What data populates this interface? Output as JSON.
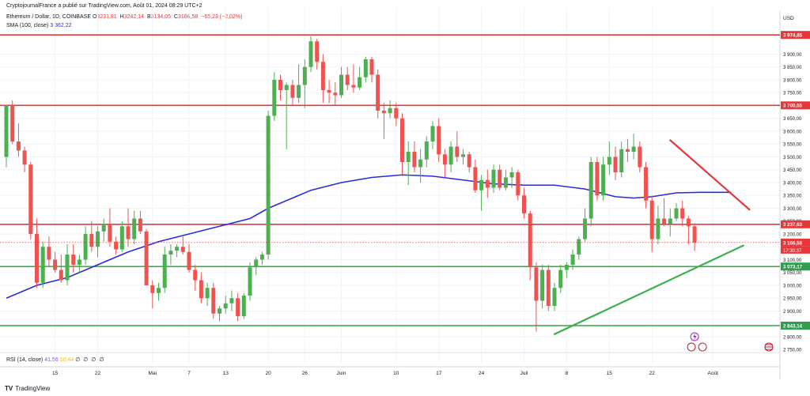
{
  "header": {
    "line1": "CryptojournalFrance a publié sur TradingView.com, Août 01, 2024 08:29 UTC+2",
    "line2": "Ethereum / Dollar, 1D, COINBASE",
    "ohlc": [
      {
        "label": "O",
        "value": "3231,81"
      },
      {
        "label": "H",
        "value": "3242,14"
      },
      {
        "label": "B",
        "value": "3134,05"
      },
      {
        "label": "C",
        "value": "3166,58"
      },
      {
        "label": "",
        "value": "−65,23 (−2,02%)"
      }
    ],
    "sma_label": "SMA (100, close)",
    "sma_value": "3 362,22",
    "rsi_label": "RSI (14, close)",
    "rsi_value1": "41,56",
    "rsi_value2": "50,44",
    "rsi_dots": "∅ ∅ ∅ ∅"
  },
  "axis": {
    "currency": "USD",
    "price_ticks": [
      "3 900,00",
      "3 850,00",
      "3 800,00",
      "3 750,00",
      "3 650,00",
      "3 600,00",
      "3 550,00",
      "3 500,00",
      "3 450,00",
      "3 400,00",
      "3 350,00",
      "3 300,00",
      "3 250,00",
      "3 200,00",
      "3 150,00",
      "3 100,00",
      "3 050,00",
      "3 000,00",
      "2 950,00",
      "2 900,00",
      "2 800,00",
      "2 750,00"
    ],
    "date_labels": [
      {
        "day": 8,
        "text": "15"
      },
      {
        "day": 15,
        "text": "22"
      },
      {
        "day": 24,
        "text": "Mai"
      },
      {
        "day": 30,
        "text": "7"
      },
      {
        "day": 36,
        "text": "13"
      },
      {
        "day": 43,
        "text": "20"
      },
      {
        "day": 49,
        "text": "26"
      },
      {
        "day": 55,
        "text": "Juin"
      },
      {
        "day": 64,
        "text": "10"
      },
      {
        "day": 71,
        "text": "17"
      },
      {
        "day": 78,
        "text": "24"
      },
      {
        "day": 85,
        "text": "Juil"
      },
      {
        "day": 92,
        "text": "8"
      },
      {
        "day": 99,
        "text": "15"
      },
      {
        "day": 106,
        "text": "22"
      },
      {
        "day": 116,
        "text": "Août"
      }
    ],
    "level_badges": [
      {
        "price": 3974.85,
        "text": "3 974,85",
        "color": "#e5383b"
      },
      {
        "price": 3700.55,
        "text": "3 700,55",
        "color": "#e5383b"
      },
      {
        "price": 3237.63,
        "text": "3 237,63",
        "color": "#e5383b"
      },
      {
        "price": 3166.58,
        "text": "3 166,58",
        "color": "#e5383b"
      },
      {
        "price": 3073.17,
        "text": "3 073,17",
        "color": "#2e9e4f"
      },
      {
        "price": 2843.14,
        "text": "2 843,14",
        "color": "#2e9e4f"
      }
    ],
    "countdown": "17:30:37"
  },
  "brand": {
    "logo": "TV",
    "name": "TradingView"
  },
  "colors": {
    "up": "#26a69a",
    "up_strong": "#4caf50",
    "down": "#ef5350",
    "resistance": "#e5383b",
    "support": "#3daf4b",
    "sma": "#2b2bd9",
    "grid": "#f0f3fa"
  },
  "chart_data": {
    "type": "candlestick",
    "x_unit": "trading day index (0 = chart start, ~2024-04-07)",
    "ylim": [
      2720,
      4000
    ],
    "horizontal_levels": [
      {
        "price": 3974.85,
        "kind": "resistance"
      },
      {
        "price": 3700.55,
        "kind": "resistance"
      },
      {
        "price": 3237.63,
        "kind": "resistance"
      },
      {
        "price": 3073.17,
        "kind": "support"
      },
      {
        "price": 2843.14,
        "kind": "support"
      }
    ],
    "trendlines": [
      {
        "kind": "resistance",
        "from": [
          109,
          3565
        ],
        "to": [
          122,
          3295
        ]
      },
      {
        "kind": "support",
        "from": [
          90,
          2810
        ],
        "to": [
          121,
          3155
        ]
      }
    ],
    "sma100": [
      [
        0,
        2950
      ],
      [
        5,
        3000
      ],
      [
        10,
        3030
      ],
      [
        15,
        3080
      ],
      [
        20,
        3130
      ],
      [
        25,
        3170
      ],
      [
        30,
        3200
      ],
      [
        35,
        3230
      ],
      [
        40,
        3260
      ],
      [
        43,
        3300
      ],
      [
        47,
        3340
      ],
      [
        50,
        3370
      ],
      [
        55,
        3400
      ],
      [
        60,
        3420
      ],
      [
        65,
        3430
      ],
      [
        70,
        3425
      ],
      [
        75,
        3410
      ],
      [
        80,
        3395
      ],
      [
        85,
        3390
      ],
      [
        90,
        3390
      ],
      [
        95,
        3375
      ],
      [
        100,
        3345
      ],
      [
        103,
        3340
      ],
      [
        106,
        3345
      ],
      [
        110,
        3360
      ],
      [
        114,
        3362
      ],
      [
        119,
        3362
      ]
    ],
    "candles": [
      [
        3500,
        3700,
        3460,
        3700
      ],
      [
        3700,
        3720,
        3550,
        3560
      ],
      [
        3560,
        3630,
        3500,
        3525
      ],
      [
        3525,
        3540,
        3440,
        3470
      ],
      [
        3470,
        3480,
        3180,
        3200
      ],
      [
        3200,
        3260,
        2990,
        3010
      ],
      [
        3010,
        3170,
        2990,
        3150
      ],
      [
        3150,
        3190,
        3070,
        3100
      ],
      [
        3100,
        3130,
        3050,
        3060
      ],
      [
        3060,
        3120,
        3010,
        3020
      ],
      [
        3020,
        3160,
        3000,
        3120
      ],
      [
        3120,
        3160,
        3050,
        3080
      ],
      [
        3080,
        3120,
        3050,
        3100
      ],
      [
        3100,
        3230,
        3080,
        3200
      ],
      [
        3200,
        3250,
        3130,
        3150
      ],
      [
        3150,
        3230,
        3110,
        3210
      ],
      [
        3210,
        3260,
        3170,
        3240
      ],
      [
        3240,
        3300,
        3150,
        3170
      ],
      [
        3170,
        3190,
        3120,
        3140
      ],
      [
        3140,
        3250,
        3130,
        3230
      ],
      [
        3230,
        3300,
        3150,
        3180
      ],
      [
        3180,
        3290,
        3160,
        3260
      ],
      [
        3260,
        3290,
        3200,
        3210
      ],
      [
        3210,
        3220,
        3000,
        3000
      ],
      [
        3000,
        3020,
        2910,
        2970
      ],
      [
        2970,
        3010,
        2940,
        2990
      ],
      [
        2990,
        3150,
        2970,
        3120
      ],
      [
        3120,
        3160,
        3080,
        3135
      ],
      [
        3135,
        3160,
        3110,
        3150
      ],
      [
        3150,
        3190,
        3120,
        3130
      ],
      [
        3130,
        3160,
        3050,
        3060
      ],
      [
        3060,
        3080,
        2980,
        3020
      ],
      [
        3020,
        3050,
        2930,
        2950
      ],
      [
        2950,
        3010,
        2920,
        2990
      ],
      [
        2990,
        3010,
        2870,
        2890
      ],
      [
        2890,
        2920,
        2860,
        2910
      ],
      [
        2910,
        2960,
        2890,
        2930
      ],
      [
        2930,
        2980,
        2900,
        2950
      ],
      [
        2950,
        2970,
        2860,
        2880
      ],
      [
        2880,
        2970,
        2870,
        2960
      ],
      [
        2960,
        3090,
        2940,
        3070
      ],
      [
        3070,
        3110,
        3040,
        3100
      ],
      [
        3100,
        3130,
        3080,
        3120
      ],
      [
        3120,
        3680,
        3100,
        3660
      ],
      [
        3660,
        3830,
        3640,
        3800
      ],
      [
        3800,
        3820,
        3720,
        3760
      ],
      [
        3760,
        3790,
        3530,
        3780
      ],
      [
        3780,
        3800,
        3700,
        3730
      ],
      [
        3730,
        3860,
        3710,
        3780
      ],
      [
        3780,
        3880,
        3690,
        3850
      ],
      [
        3850,
        3970,
        3830,
        3950
      ],
      [
        3950,
        3960,
        3840,
        3870
      ],
      [
        3870,
        3900,
        3710,
        3760
      ],
      [
        3760,
        3800,
        3710,
        3750
      ],
      [
        3750,
        3790,
        3700,
        3740
      ],
      [
        3740,
        3850,
        3730,
        3820
      ],
      [
        3820,
        3850,
        3760,
        3780
      ],
      [
        3780,
        3860,
        3750,
        3770
      ],
      [
        3770,
        3850,
        3760,
        3810
      ],
      [
        3810,
        3890,
        3790,
        3880
      ],
      [
        3880,
        3890,
        3790,
        3820
      ],
      [
        3820,
        3840,
        3650,
        3680
      ],
      [
        3680,
        3710,
        3570,
        3670
      ],
      [
        3670,
        3720,
        3650,
        3690
      ],
      [
        3690,
        3710,
        3620,
        3650
      ],
      [
        3650,
        3670,
        3430,
        3480
      ],
      [
        3480,
        3560,
        3390,
        3520
      ],
      [
        3520,
        3560,
        3440,
        3460
      ],
      [
        3460,
        3530,
        3400,
        3490
      ],
      [
        3490,
        3580,
        3460,
        3560
      ],
      [
        3560,
        3640,
        3530,
        3620
      ],
      [
        3620,
        3650,
        3480,
        3510
      ],
      [
        3510,
        3530,
        3420,
        3470
      ],
      [
        3470,
        3560,
        3440,
        3540
      ],
      [
        3540,
        3600,
        3480,
        3500
      ],
      [
        3500,
        3530,
        3470,
        3510
      ],
      [
        3510,
        3520,
        3440,
        3460
      ],
      [
        3460,
        3490,
        3360,
        3370
      ],
      [
        3370,
        3430,
        3290,
        3410
      ],
      [
        3410,
        3450,
        3340,
        3380
      ],
      [
        3380,
        3470,
        3360,
        3450
      ],
      [
        3450,
        3470,
        3370,
        3380
      ],
      [
        3380,
        3450,
        3370,
        3420
      ],
      [
        3420,
        3460,
        3380,
        3440
      ],
      [
        3440,
        3450,
        3330,
        3350
      ],
      [
        3350,
        3380,
        3260,
        3280
      ],
      [
        3280,
        3290,
        3020,
        3070
      ],
      [
        3070,
        3090,
        2820,
        2940
      ],
      [
        2940,
        3080,
        2910,
        3060
      ],
      [
        3060,
        3080,
        2900,
        2920
      ],
      [
        2920,
        3010,
        2900,
        2990
      ],
      [
        2990,
        3080,
        2970,
        3060
      ],
      [
        3060,
        3090,
        3030,
        3080
      ],
      [
        3080,
        3140,
        3060,
        3120
      ],
      [
        3120,
        3190,
        3100,
        3180
      ],
      [
        3180,
        3300,
        3170,
        3260
      ],
      [
        3260,
        3500,
        3230,
        3480
      ],
      [
        3480,
        3500,
        3330,
        3350
      ],
      [
        3350,
        3500,
        3330,
        3470
      ],
      [
        3470,
        3560,
        3430,
        3500
      ],
      [
        3500,
        3540,
        3410,
        3440
      ],
      [
        3440,
        3560,
        3420,
        3530
      ],
      [
        3530,
        3570,
        3480,
        3520
      ],
      [
        3520,
        3590,
        3490,
        3540
      ],
      [
        3540,
        3560,
        3440,
        3460
      ],
      [
        3460,
        3480,
        3300,
        3330
      ],
      [
        3330,
        3350,
        3130,
        3180
      ],
      [
        3180,
        3310,
        3160,
        3260
      ],
      [
        3260,
        3340,
        3230,
        3240
      ],
      [
        3240,
        3300,
        3190,
        3260
      ],
      [
        3260,
        3320,
        3250,
        3300
      ],
      [
        3300,
        3330,
        3230,
        3260
      ],
      [
        3260,
        3270,
        3160,
        3230
      ],
      [
        3230,
        3242,
        3134,
        3167
      ]
    ]
  }
}
